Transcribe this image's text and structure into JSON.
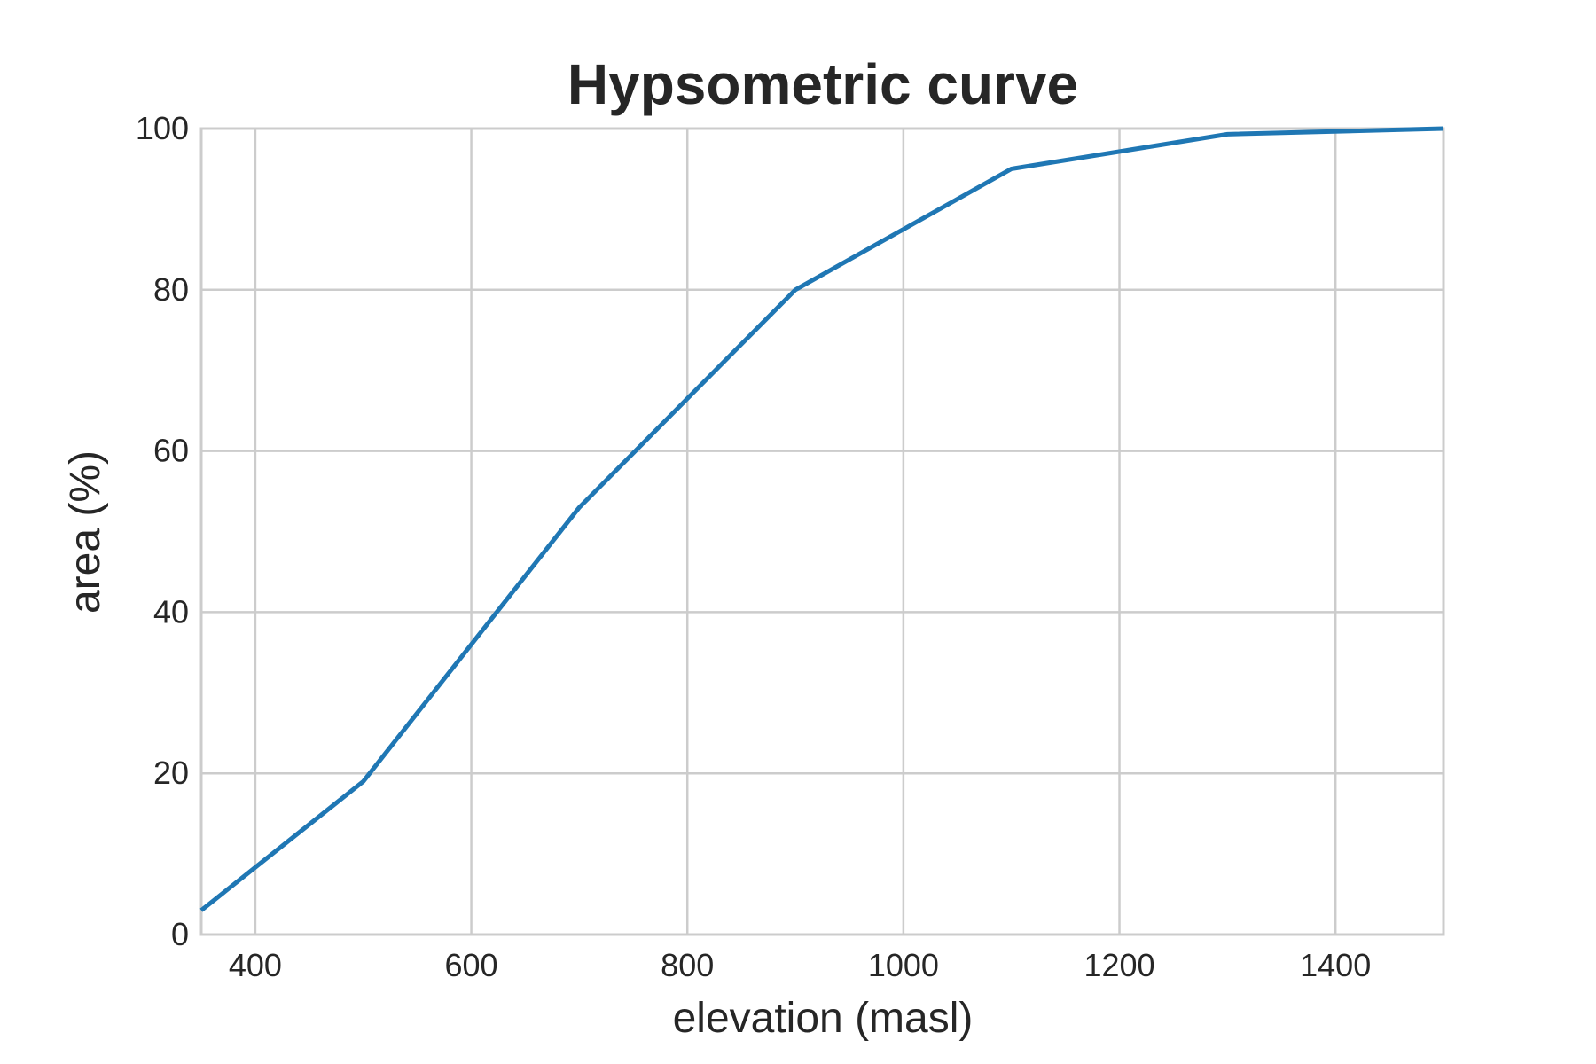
{
  "chart_data": {
    "type": "line",
    "title": "Hypsometric curve",
    "xlabel": "elevation (masl)",
    "ylabel": "area (%)",
    "xlim": [
      350,
      1500
    ],
    "ylim": [
      0,
      100
    ],
    "xticks": [
      400,
      600,
      800,
      1000,
      1200,
      1400
    ],
    "yticks": [
      0,
      20,
      40,
      60,
      80,
      100
    ],
    "grid": true,
    "series": [
      {
        "name": "hypsometric curve",
        "color": "#1f77b4",
        "x": [
          350,
          500,
          700,
          900,
          1100,
          1300,
          1500
        ],
        "y": [
          3,
          19,
          53,
          80,
          95,
          99.3,
          100
        ]
      }
    ]
  }
}
